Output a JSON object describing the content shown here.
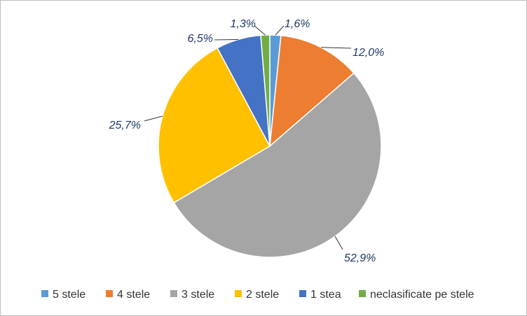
{
  "chart_data": {
    "type": "pie",
    "title": "",
    "legend_position": "bottom",
    "slices": [
      {
        "name": "5 stele",
        "value": 1.6,
        "label": "1,6%",
        "color": "#5b9bd5"
      },
      {
        "name": "4 stele",
        "value": 12.0,
        "label": "12,0%",
        "color": "#ed7d31"
      },
      {
        "name": "3 stele",
        "value": 52.9,
        "label": "52,9%",
        "color": "#a5a5a5"
      },
      {
        "name": "2 stele",
        "value": 25.7,
        "label": "25,7%",
        "color": "#ffc000"
      },
      {
        "name": "1 stea",
        "value": 6.5,
        "label": "6,5%",
        "color": "#4472c4"
      },
      {
        "name": "neclasificate pe stele",
        "value": 1.3,
        "label": "1,3%",
        "color": "#70ad47"
      }
    ]
  }
}
